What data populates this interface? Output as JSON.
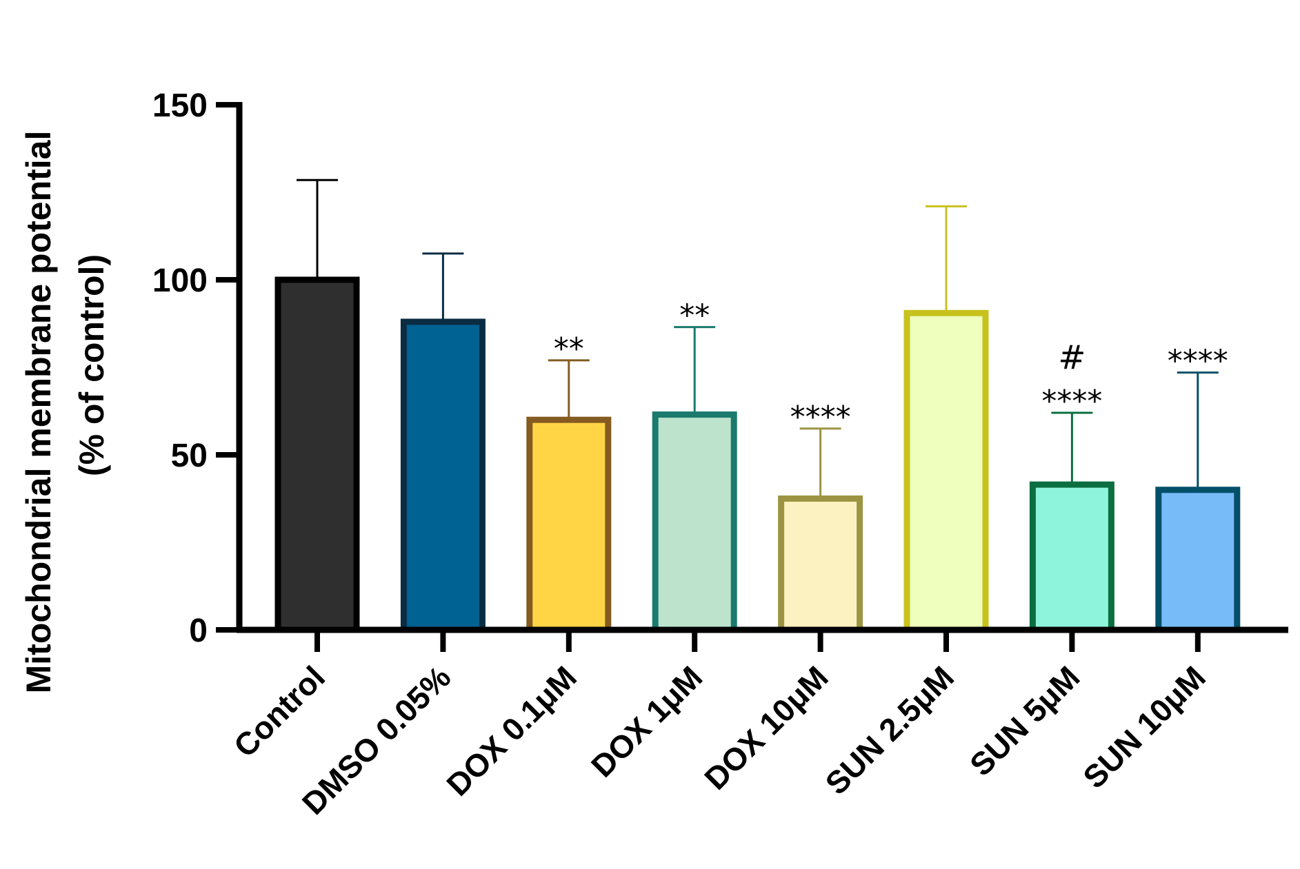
{
  "chart_data": {
    "type": "bar",
    "title": "",
    "xlabel": "",
    "ylabel_line1": "Mitochondrial membrane potential",
    "ylabel_line2": "(% of control)",
    "ylim": [
      0,
      150
    ],
    "yticks": [
      0,
      50,
      100,
      150
    ],
    "ytick_labels": [
      "0",
      "50",
      "100",
      "150"
    ],
    "grid": false,
    "categories": [
      "Control",
      "DMSO 0.05%",
      "DOX 0.1μM",
      "DOX 1μM",
      "DOX 10μM",
      "SUN 2.5μM",
      "SUN 5μM",
      "SUN 10μM"
    ],
    "values": [
      100,
      88,
      60,
      61.5,
      37.5,
      90.5,
      41.5,
      40
    ],
    "error_upper": [
      128.5,
      107.5,
      77,
      86.5,
      57.5,
      121,
      62,
      73.5
    ],
    "fill_colors": [
      "#2f2f2f",
      "#006193",
      "#ffd546",
      "#bde3cc",
      "#fbf1c1",
      "#eeffbe",
      "#8ef5dc",
      "#78bbf9"
    ],
    "edge_colors": [
      "#000000",
      "#0a2c43",
      "#855b21",
      "#1a7a6d",
      "#9c9442",
      "#c7c21d",
      "#0b6f41",
      "#044f69"
    ],
    "annotations": [
      {
        "category": "DOX 0.1μM",
        "lines": [
          "**"
        ]
      },
      {
        "category": "DOX 1μM",
        "lines": [
          "**"
        ]
      },
      {
        "category": "DOX 10μM",
        "lines": [
          "****"
        ]
      },
      {
        "category": "SUN 5μM",
        "lines": [
          "#",
          "****"
        ]
      },
      {
        "category": "SUN 10μM",
        "lines": [
          "****"
        ]
      }
    ]
  }
}
